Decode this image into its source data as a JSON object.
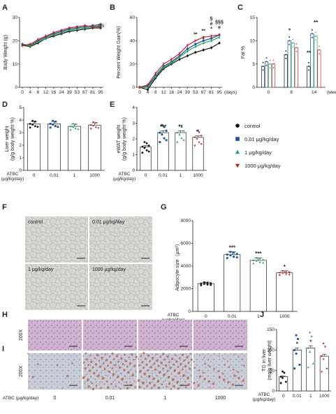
{
  "colors": {
    "control": "#111111",
    "dose_001": "#1f4e9c",
    "dose_1": "#2aa05a",
    "dose_1000": "#c0222a",
    "he_stain": "#c9a9c9",
    "oil_red": "#b86a55",
    "micro_bg": "#d4d4d0"
  },
  "legend": [
    {
      "label": "control",
      "marker": "circle",
      "color": "#111111"
    },
    {
      "label": "0.01 μg/kg/day",
      "marker": "square",
      "color": "#1f4e9c"
    },
    {
      "label": "1 μg/kg/day",
      "marker": "triangle",
      "color": "#2aa05a"
    },
    {
      "label": "1000  μg/kg/day",
      "marker": "triangle-down",
      "color": "#c0222a"
    }
  ],
  "chart_data": [
    {
      "panel": "A",
      "type": "line",
      "ylabel": "Body Weight (g)",
      "ylim": [
        0,
        30
      ],
      "yticks": [
        0,
        10,
        20,
        30
      ],
      "x": [
        0,
        4,
        8,
        12,
        16,
        24,
        39,
        53,
        67,
        81,
        95
      ],
      "annotation": "ns",
      "series": [
        {
          "values": [
            18,
            17.5,
            19,
            21,
            22,
            23,
            24,
            24.5,
            25,
            25.5,
            25.5
          ]
        },
        {
          "values": [
            18.5,
            18,
            20,
            21.5,
            23,
            24,
            25,
            25.5,
            26,
            26.5,
            27
          ]
        },
        {
          "values": [
            18.2,
            17.8,
            19.5,
            21,
            22.5,
            23.5,
            24.5,
            25,
            25.5,
            26,
            26.5
          ]
        },
        {
          "values": [
            18,
            18.5,
            20.5,
            22,
            23.5,
            24.5,
            25.5,
            26,
            26.5,
            26,
            26
          ]
        }
      ]
    },
    {
      "panel": "B",
      "type": "line",
      "ylabel": "Percent Weight Gain(%)",
      "ylim": [
        0,
        60
      ],
      "yticks": [
        0,
        20,
        40,
        60
      ],
      "x": [
        0,
        4,
        8,
        12,
        16,
        24,
        39,
        53,
        67,
        81,
        95
      ],
      "x_unit": "(days)",
      "annotations": [
        {
          "text": "**",
          "x": 53,
          "y": 44
        },
        {
          "text": "**",
          "x": 67,
          "y": 47
        },
        {
          "text": "*",
          "x": 81,
          "y": 49
        },
        {
          "text": "#",
          "x": 81,
          "y": 53
        },
        {
          "text": "§",
          "x": 81,
          "y": 58
        },
        {
          "text": "#",
          "x": 95,
          "y": 50
        },
        {
          "text": "§§§",
          "x": 95,
          "y": 55
        },
        {
          "text": "*",
          "x": 67,
          "y": 40
        }
      ],
      "series": [
        {
          "values": [
            0,
            -2,
            8,
            16,
            20,
            24,
            27,
            30,
            32,
            34,
            38
          ]
        },
        {
          "values": [
            0,
            1,
            10,
            18,
            22,
            27,
            33,
            37,
            40,
            42,
            45
          ]
        },
        {
          "values": [
            0,
            0,
            9,
            17,
            21,
            26,
            31,
            35,
            38,
            40,
            43
          ]
        },
        {
          "values": [
            0,
            2,
            12,
            20,
            24,
            29,
            36,
            40,
            43,
            44,
            45
          ]
        }
      ]
    },
    {
      "panel": "C",
      "type": "bar",
      "ylabel": "Fat %",
      "ylim": [
        0,
        15
      ],
      "yticks": [
        0,
        5,
        10,
        15
      ],
      "categories": [
        "0",
        "8",
        "14"
      ],
      "x_unit": "(weeks)",
      "series": [
        {
          "values": [
            4.5,
            7,
            4.5
          ]
        },
        {
          "values": [
            5.5,
            10,
            11.5
          ]
        },
        {
          "values": [
            5,
            9.5,
            11
          ]
        },
        {
          "values": [
            5,
            8.5,
            8
          ]
        }
      ],
      "annotations": [
        {
          "text": "*",
          "group": 1,
          "bar": 1,
          "y": 11.8
        },
        {
          "text": "**",
          "group": 2,
          "bar": 0,
          "y": 7
        },
        {
          "text": "**",
          "group": 2,
          "bar": 2,
          "y": 13.5
        }
      ]
    },
    {
      "panel": "D",
      "type": "bar",
      "ylabel": "Liver weight (g/g body weight %)",
      "ylim": [
        0,
        5
      ],
      "yticks": [
        0,
        1,
        2,
        3,
        4,
        5
      ],
      "xlabel": "ATBC (μg/kg/day)",
      "categories": [
        "0",
        "0.01",
        "1",
        "1000"
      ],
      "values": [
        3.7,
        3.7,
        3.5,
        3.6
      ]
    },
    {
      "panel": "E",
      "type": "bar",
      "ylabel": "eWAT weight (g/g body weight %)",
      "ylim": [
        0,
        4
      ],
      "yticks": [
        0,
        1,
        2,
        3,
        4
      ],
      "xlabel": "ATBC (μg/kg/day)",
      "categories": [
        "0",
        "0.01",
        "1",
        "1000"
      ],
      "values": [
        1.5,
        2.4,
        2.4,
        2.1
      ],
      "annotations": [
        "",
        "***",
        "**",
        "*"
      ]
    },
    {
      "panel": "G",
      "type": "bar",
      "ylabel": "Adipocyte size（μm²）",
      "ylim": [
        0,
        8000
      ],
      "yticks": [
        0,
        2000,
        4000,
        6000,
        8000
      ],
      "xlabel": "ATBC (μg/kg/day)",
      "categories": [
        "0",
        "0.01",
        "1",
        "1000"
      ],
      "values": [
        2450,
        5000,
        4500,
        3400
      ],
      "annotations": [
        "",
        "***",
        "***",
        "*"
      ]
    },
    {
      "panel": "J",
      "type": "bar",
      "ylabel": "TG in liver (mg/g liver weight)",
      "ylim": [
        0,
        150
      ],
      "yticks": [
        0,
        50,
        100,
        150
      ],
      "xlabel": "ATBC (μg/kg/day)",
      "categories": [
        "0",
        "0.01",
        "1",
        "1000"
      ],
      "values": [
        35,
        100,
        105,
        85
      ],
      "annotations": [
        "",
        "*",
        "*",
        ""
      ]
    }
  ],
  "panel_F": {
    "letter": "F",
    "tiles": [
      "control",
      "0.01 μg/kg/day",
      "1 μg/kg/day",
      "1000 μg/kg/day"
    ]
  },
  "panel_HI": {
    "letter_H": "H",
    "letter_I": "I",
    "magnification": "200X",
    "xlabel": "ATBC (μg/kg/day)",
    "doses": [
      "0",
      "0.01",
      "1",
      "1000"
    ],
    "oil_red_density": [
      0.05,
      0.7,
      0.85,
      0.25
    ]
  }
}
